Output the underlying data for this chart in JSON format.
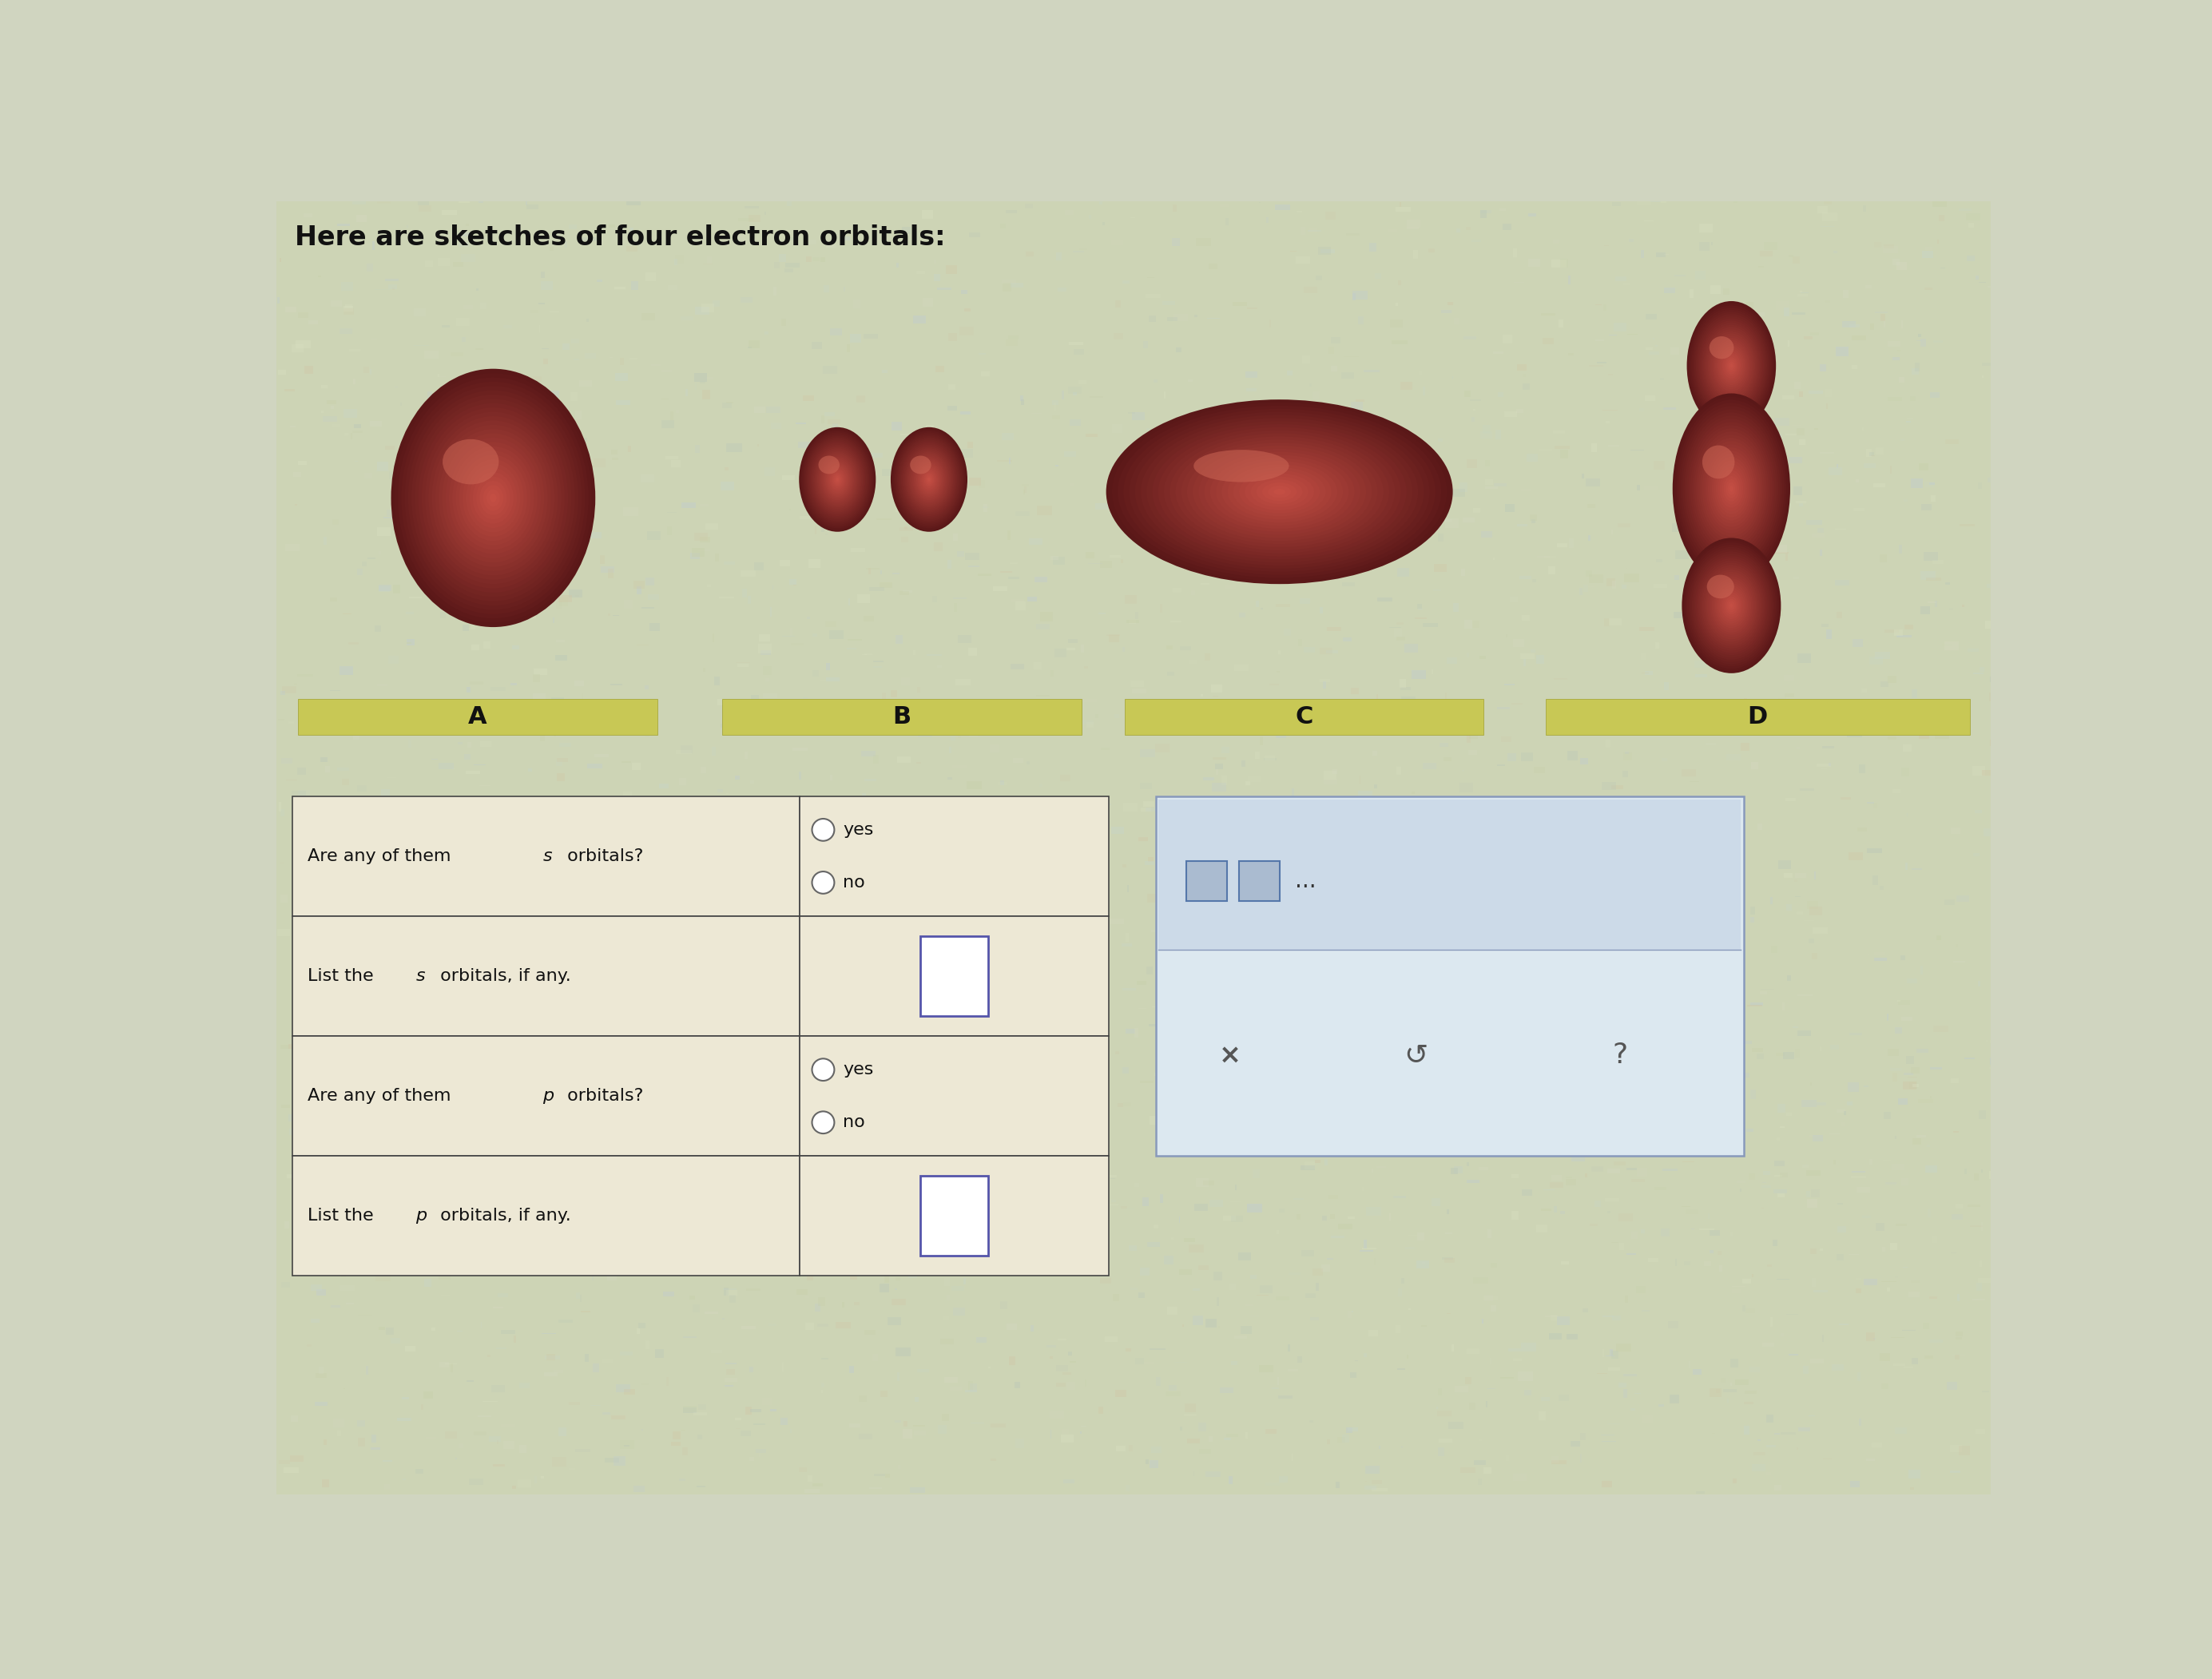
{
  "title": "Here are sketches of four electron orbitals:",
  "bg_color": "#d0d5c0",
  "orbital_dark": "#5a1a1a",
  "orbital_mid": "#8b3030",
  "orbital_light": "#c06050",
  "orbital_highlight": "#d08070",
  "label_names": [
    "A",
    "B",
    "C",
    "D"
  ],
  "label_bar_color": "#c8c855",
  "label_bar_edge": "#a0a030",
  "table_rows": [
    "Are any of them s orbitals?",
    "List the s orbitals, if any.",
    "Are any of them p orbitals?",
    "List the p orbitals, if any."
  ],
  "font_size_title": 24,
  "font_size_labels": 20,
  "font_size_table": 16,
  "table_bg": "#ede8d5",
  "table_edge": "#444444",
  "panel_bg": "#dce8f0",
  "panel_edge": "#8899bb",
  "panel_top_bg": "#ccdae8"
}
